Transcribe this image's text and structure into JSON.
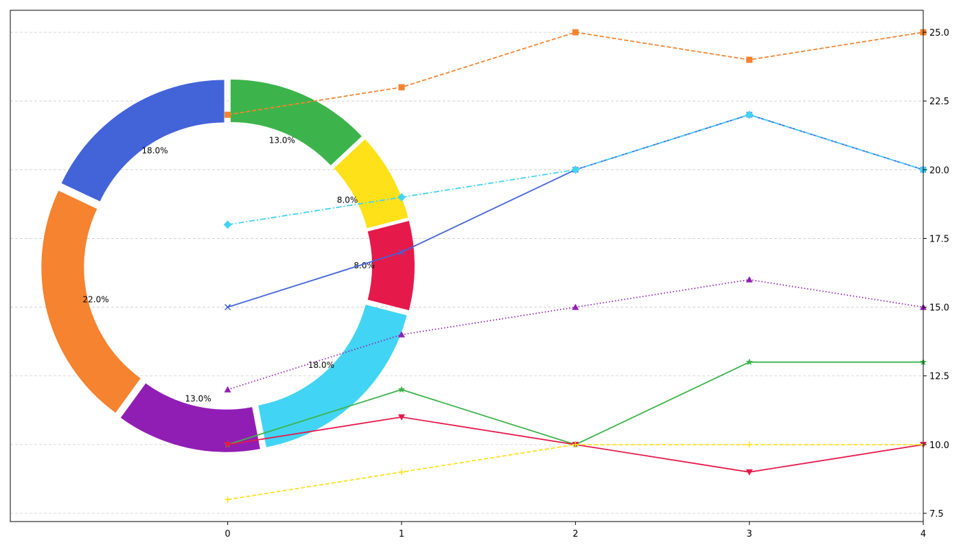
{
  "chart_data": [
    {
      "type": "line",
      "x": [
        0,
        1,
        2,
        3,
        4
      ],
      "xticks": [
        "0",
        "1",
        "2",
        "3",
        "4"
      ],
      "xlim": [
        -1.25,
        4
      ],
      "ylim": [
        7.2,
        25.8
      ],
      "yticks": [
        "7.5",
        "10.0",
        "12.5",
        "15.0",
        "17.5",
        "20.0",
        "22.5",
        "25.0"
      ],
      "yaxis_side": "right",
      "grid": "horizontal dashed",
      "series": [
        {
          "values": [
            22,
            23,
            25,
            24,
            25
          ],
          "color": "#f5832f",
          "dash": "dashed",
          "marker": "square"
        },
        {
          "values": [
            15,
            17,
            20,
            22,
            20
          ],
          "color": "#4363d8",
          "dash": "solid",
          "marker": "x"
        },
        {
          "values": [
            18,
            19,
            20,
            22,
            20
          ],
          "color": "#42d4f4",
          "dash": "dashdot",
          "marker": "diamond"
        },
        {
          "values": [
            12,
            14,
            15,
            16,
            15
          ],
          "color": "#911eb4",
          "dash": "dotted",
          "marker": "triangle-up"
        },
        {
          "values": [
            10,
            12,
            10,
            13,
            13
          ],
          "color": "#3cb44b",
          "dash": "solid",
          "marker": "star"
        },
        {
          "values": [
            10,
            11,
            10,
            9,
            10
          ],
          "color": "#e6194b",
          "dash": "solid",
          "marker": "triangle-down"
        },
        {
          "values": [
            8,
            9,
            10,
            10,
            10
          ],
          "color": "#ffe119",
          "dash": "dashed",
          "marker": "plus"
        }
      ]
    },
    {
      "type": "pie",
      "style": "donut, exploded wedges",
      "slices": [
        {
          "label": "13.0%",
          "value": 13,
          "color": "#3cb44b"
        },
        {
          "label": "8.0%",
          "value": 8,
          "color": "#ffe119"
        },
        {
          "label": "8.0%",
          "value": 8,
          "color": "#e6194b"
        },
        {
          "label": "18.0%",
          "value": 18,
          "color": "#42d4f4"
        },
        {
          "label": "13.0%",
          "value": 13,
          "color": "#911eb4"
        },
        {
          "label": "22.0%",
          "value": 22,
          "color": "#f5832f"
        },
        {
          "label": "18.0%",
          "value": 18,
          "color": "#4363d8"
        }
      ]
    }
  ]
}
